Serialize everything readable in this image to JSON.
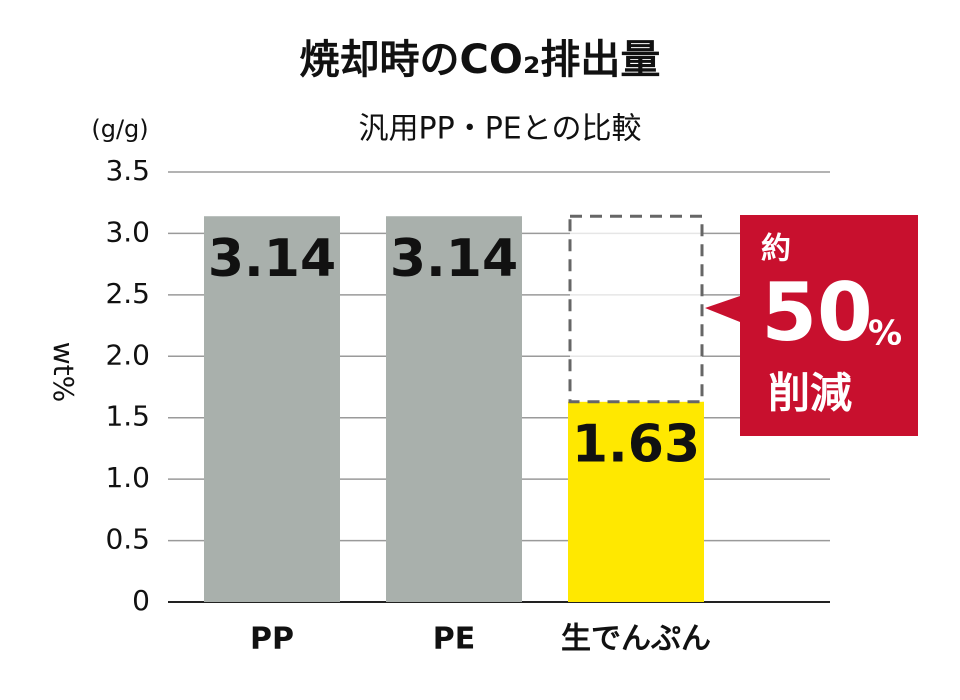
{
  "chart_data": {
    "type": "bar",
    "title": "焼却時のCO₂排出量",
    "subtitle": "汎用PP・PEとの比較",
    "unit_label": "(g/g)",
    "y_label": "wt%",
    "categories": [
      "PP",
      "PE",
      "生でんぷん"
    ],
    "values": [
      3.14,
      3.14,
      1.63
    ],
    "colors": [
      "#a9b0ac",
      "#a9b0ac",
      "#ffe800"
    ],
    "ylim": [
      0,
      3.5
    ],
    "yticks": [
      0,
      0.5,
      {
        "value": 1,
        "label": "1.0"
      },
      1.5,
      {
        "value": 2,
        "label": "2.0"
      },
      2.5,
      {
        "value": 3,
        "label": "3.0"
      },
      3.5
    ],
    "grid": true,
    "callout": {
      "prefix": "約",
      "number": "50",
      "unit": "%",
      "suffix": "削減",
      "color": "#c8102e"
    }
  }
}
